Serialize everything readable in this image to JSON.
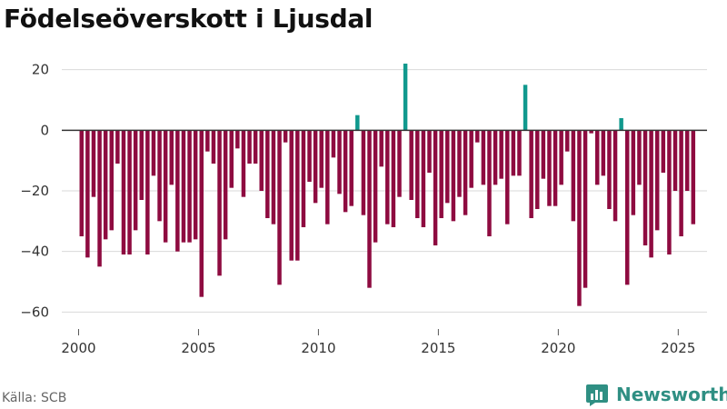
{
  "title": "Födelseöverskott i Ljusdal",
  "source": "Källa: SCB",
  "brand": {
    "name": "Newsworthy",
    "icon": "newsworthy-logo-icon"
  },
  "colors": {
    "negative": "#8e0b40",
    "positive": "#11998e",
    "grid": "#d9d9d9",
    "zero_line": "#333333",
    "text": "#333333"
  },
  "chart_data": {
    "type": "bar",
    "title": "Födelseöverskott i Ljusdal",
    "xlabel": "",
    "ylabel": "",
    "ylim": [
      -65,
      25
    ],
    "yticks": [
      20,
      0,
      -20,
      -40,
      -60
    ],
    "ytick_labels": [
      "20",
      "0",
      "−20",
      "−40",
      "−60"
    ],
    "xlim": [
      1999.3,
      2026.2
    ],
    "xticks": [
      2000,
      2005,
      2010,
      2015,
      2020,
      2025
    ],
    "xtick_labels": [
      "2000",
      "2005",
      "2010",
      "2015",
      "2020",
      "2025"
    ],
    "grid": "horizontal",
    "frequency": "quarterly",
    "start": "2000 Q1",
    "values": [
      -35,
      -42,
      -22,
      -45,
      -36,
      -33,
      -11,
      -41,
      -41,
      -33,
      -23,
      -41,
      -15,
      -30,
      -37,
      -18,
      -40,
      -37,
      -37,
      -36,
      -55,
      -7,
      -11,
      -48,
      -36,
      -19,
      -6,
      -22,
      -11,
      -11,
      -20,
      -29,
      -31,
      -51,
      -4,
      -43,
      -43,
      -32,
      -17,
      -24,
      -19,
      -31,
      -9,
      -21,
      -27,
      -25,
      5,
      -28,
      -52,
      -37,
      -12,
      -31,
      -32,
      -22,
      22,
      -23,
      -29,
      -32,
      -14,
      -38,
      -29,
      -24,
      -30,
      -22,
      -28,
      -19,
      -4,
      -18,
      -35,
      -18,
      -16,
      -31,
      -15,
      -15,
      15,
      -29,
      -26,
      -16,
      -25,
      -25,
      -18,
      -7,
      -30,
      -58,
      -52,
      -1,
      -18,
      -15,
      -26,
      -30,
      4,
      -51,
      -28,
      -18,
      -38,
      -42,
      -33,
      -14,
      -41,
      -20,
      -35,
      -20,
      -31
    ]
  }
}
